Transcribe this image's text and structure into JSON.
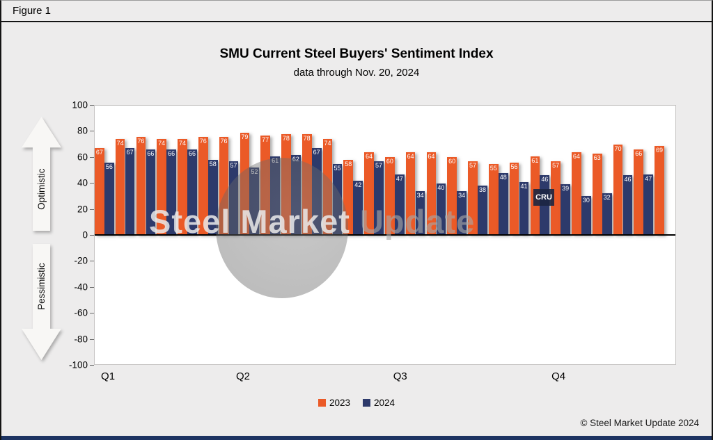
{
  "figure_label": "Figure 1",
  "title": "SMU Current Steel Buyers' Sentiment Index",
  "subtitle": "data through Nov. 20, 2024",
  "side_labels": {
    "optimistic": "Optimistic",
    "pessimistic": "Pessimistic"
  },
  "watermark": {
    "part1": "Steel Market",
    "part2": " Update",
    "cru": "CRU"
  },
  "copyright": "© Steel Market Update 2024",
  "legend": [
    {
      "label": "2023",
      "color": "#eb5a27"
    },
    {
      "label": "2024",
      "color": "#2d3a6b"
    }
  ],
  "chart_data": {
    "type": "bar",
    "title": "SMU Current Steel Buyers' Sentiment Index",
    "subtitle": "data through Nov. 20, 2024",
    "ylim": [
      -100,
      100
    ],
    "yticks": [
      100,
      80,
      60,
      40,
      20,
      0,
      -20,
      -40,
      -60,
      -80,
      -100
    ],
    "grid": false,
    "legend_position": "bottom",
    "x_quarter_labels": [
      "Q1",
      "Q2",
      "Q3",
      "Q4"
    ],
    "x_quarter_positions_pct": [
      1.2,
      24.4,
      51.4,
      78.6
    ],
    "n_periods": 28,
    "series": [
      {
        "name": "2023",
        "color": "#eb5a27",
        "values": [
          67,
          74,
          76,
          74,
          74,
          76,
          76,
          79,
          77,
          78,
          78,
          74,
          58,
          64,
          60,
          64,
          64,
          60,
          57,
          55,
          56,
          61,
          57,
          64,
          63,
          70,
          66,
          69
        ]
      },
      {
        "name": "2024",
        "color": "#2d3a6b",
        "values": [
          56,
          67,
          66,
          66,
          66,
          58,
          57,
          52,
          61,
          62,
          67,
          55,
          42,
          57,
          47,
          34,
          40,
          34,
          38,
          48,
          41,
          46,
          39,
          30,
          32,
          46,
          47,
          null
        ]
      }
    ]
  }
}
